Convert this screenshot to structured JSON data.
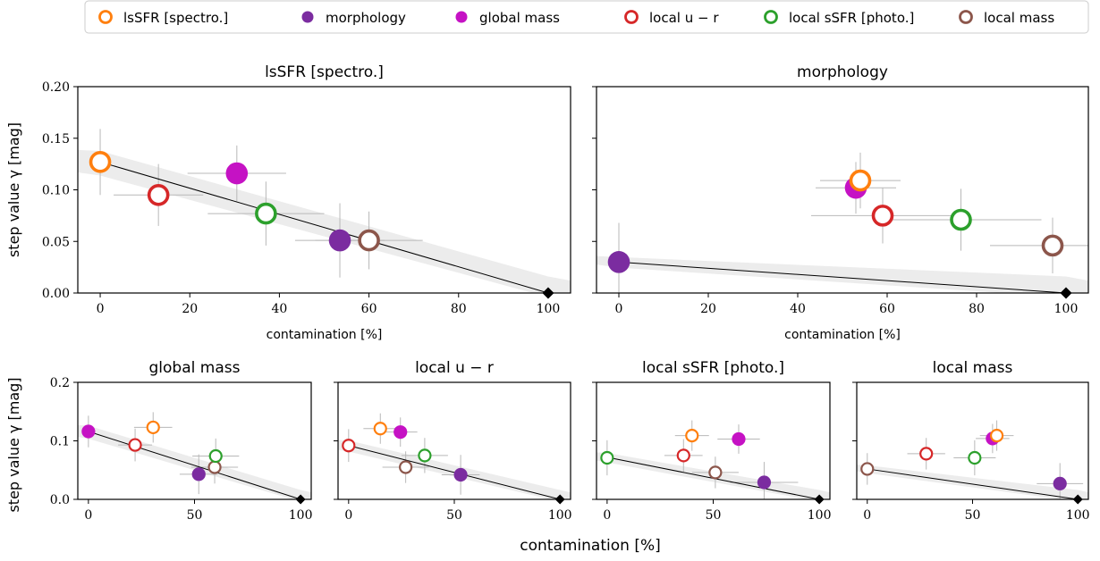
{
  "legend": {
    "placement": "top-center",
    "entries": [
      {
        "label": "lsSFR [spectro.]",
        "color": "#ff7f0e",
        "filled": false
      },
      {
        "label": "morphology",
        "color": "#7b2ca0",
        "filled": true
      },
      {
        "label": "global mass",
        "color": "#c512c4",
        "filled": true
      },
      {
        "label": "local u − r",
        "color": "#d62728",
        "filled": false
      },
      {
        "label": "local sSFR [photo.]",
        "color": "#2ca02c",
        "filled": false
      },
      {
        "label": "local mass",
        "color": "#8c564b",
        "filled": false
      }
    ]
  },
  "figure": {
    "xlabel": "contamination [%]",
    "ylabel": "step value γ [mag]"
  },
  "chart_data": [
    {
      "type": "scatter",
      "title": "lsSFR [spectro.]",
      "xlabel": "contamination [%]",
      "ylabel": "step value γ [mag]",
      "xlim": [
        -5,
        105
      ],
      "ylim": [
        0,
        0.2
      ],
      "xticks": [
        "0",
        "20",
        "40",
        "60",
        "80",
        "100"
      ],
      "yticks": [
        "0.00",
        "0.05",
        "0.10",
        "0.15",
        "0.20"
      ],
      "line": {
        "from": [
          0,
          0.127
        ],
        "to": [
          100,
          0
        ]
      },
      "points": [
        {
          "series": "lsSFR [spectro.]",
          "x": 0,
          "y": 0.127,
          "xerr": 0,
          "yerr": 0.032
        },
        {
          "series": "local u − r",
          "x": 13,
          "y": 0.095,
          "xerr": 10,
          "yerr": 0.03
        },
        {
          "series": "global mass",
          "x": 30.5,
          "y": 0.116,
          "xerr": 11,
          "yerr": 0.027
        },
        {
          "series": "local sSFR [photo.]",
          "x": 37,
          "y": 0.077,
          "xerr": 13,
          "yerr": 0.031
        },
        {
          "series": "morphology",
          "x": 53.5,
          "y": 0.051,
          "xerr": 10,
          "yerr": 0.036
        },
        {
          "series": "local mass",
          "x": 60,
          "y": 0.051,
          "xerr": 12,
          "yerr": 0.028
        }
      ]
    },
    {
      "type": "scatter",
      "title": "morphology",
      "xlabel": "contamination [%]",
      "xlim": [
        -5,
        105
      ],
      "ylim": [
        0,
        0.2
      ],
      "xticks": [
        "0",
        "20",
        "40",
        "60",
        "80",
        "100"
      ],
      "line": {
        "from": [
          0,
          0.03
        ],
        "to": [
          100,
          0
        ]
      },
      "points": [
        {
          "series": "morphology",
          "x": 0,
          "y": 0.03,
          "xerr": 0,
          "yerr": 0.038
        },
        {
          "series": "global mass",
          "x": 53,
          "y": 0.102,
          "xerr": 9,
          "yerr": 0.025
        },
        {
          "series": "lsSFR [spectro.]",
          "x": 54,
          "y": 0.109,
          "xerr": 9,
          "yerr": 0.027
        },
        {
          "series": "local u − r",
          "x": 59,
          "y": 0.075,
          "xerr": 16,
          "yerr": 0.027
        },
        {
          "series": "local sSFR [photo.]",
          "x": 76.5,
          "y": 0.071,
          "xerr": 18,
          "yerr": 0.03
        },
        {
          "series": "local mass",
          "x": 97,
          "y": 0.046,
          "xerr": 14,
          "yerr": 0.027
        }
      ]
    },
    {
      "type": "scatter",
      "title": "global mass",
      "ylabel": "step value γ [mag]",
      "xlim": [
        -5,
        105
      ],
      "ylim": [
        0,
        0.2
      ],
      "xticks": [
        "0",
        "50",
        "100"
      ],
      "yticks": [
        "0.0",
        "0.1",
        "0.2"
      ],
      "line": {
        "from": [
          0,
          0.116
        ],
        "to": [
          100,
          0
        ]
      },
      "points": [
        {
          "series": "global mass",
          "x": 0,
          "y": 0.116,
          "xerr": 0,
          "yerr": 0.027
        },
        {
          "series": "local u − r",
          "x": 22,
          "y": 0.093,
          "xerr": 8,
          "yerr": 0.028
        },
        {
          "series": "lsSFR [spectro.]",
          "x": 30.5,
          "y": 0.123,
          "xerr": 9,
          "yerr": 0.026
        },
        {
          "series": "morphology",
          "x": 52,
          "y": 0.043,
          "xerr": 9,
          "yerr": 0.034
        },
        {
          "series": "local mass",
          "x": 59.5,
          "y": 0.055,
          "xerr": 11,
          "yerr": 0.028
        },
        {
          "series": "local sSFR [photo.]",
          "x": 60,
          "y": 0.074,
          "xerr": 11,
          "yerr": 0.03
        }
      ]
    },
    {
      "type": "scatter",
      "title": "local u − r",
      "xlim": [
        -5,
        105
      ],
      "ylim": [
        0,
        0.2
      ],
      "xticks": [
        "0",
        "50",
        "100"
      ],
      "line": {
        "from": [
          0,
          0.092
        ],
        "to": [
          100,
          0
        ]
      },
      "points": [
        {
          "series": "local u − r",
          "x": 0,
          "y": 0.092,
          "xerr": 0,
          "yerr": 0.028
        },
        {
          "series": "lsSFR [spectro.]",
          "x": 15,
          "y": 0.121,
          "xerr": 8,
          "yerr": 0.026
        },
        {
          "series": "global mass",
          "x": 24.5,
          "y": 0.115,
          "xerr": 8,
          "yerr": 0.025
        },
        {
          "series": "local mass",
          "x": 27,
          "y": 0.055,
          "xerr": 11,
          "yerr": 0.027
        },
        {
          "series": "local sSFR [photo.]",
          "x": 36,
          "y": 0.075,
          "xerr": 11,
          "yerr": 0.03
        },
        {
          "series": "morphology",
          "x": 53,
          "y": 0.042,
          "xerr": 9,
          "yerr": 0.034
        }
      ]
    },
    {
      "type": "scatter",
      "title": "local sSFR [photo.]",
      "xlim": [
        -5,
        105
      ],
      "ylim": [
        0,
        0.2
      ],
      "xticks": [
        "0",
        "50",
        "100"
      ],
      "line": {
        "from": [
          0,
          0.072
        ],
        "to": [
          100,
          0
        ]
      },
      "points": [
        {
          "series": "local sSFR [photo.]",
          "x": 0,
          "y": 0.071,
          "xerr": 0,
          "yerr": 0.03
        },
        {
          "series": "local u − r",
          "x": 36,
          "y": 0.075,
          "xerr": 9,
          "yerr": 0.028
        },
        {
          "series": "lsSFR [spectro.]",
          "x": 40,
          "y": 0.109,
          "xerr": 8,
          "yerr": 0.026
        },
        {
          "series": "local mass",
          "x": 51,
          "y": 0.046,
          "xerr": 11,
          "yerr": 0.027
        },
        {
          "series": "global mass",
          "x": 62,
          "y": 0.103,
          "xerr": 10,
          "yerr": 0.025
        },
        {
          "series": "morphology",
          "x": 74,
          "y": 0.029,
          "xerr": 16,
          "yerr": 0.035
        }
      ]
    },
    {
      "type": "scatter",
      "title": "local mass",
      "xlim": [
        -5,
        105
      ],
      "ylim": [
        0,
        0.2
      ],
      "xticks": [
        "0",
        "50",
        "100"
      ],
      "line": {
        "from": [
          0,
          0.052
        ],
        "to": [
          100,
          0
        ]
      },
      "points": [
        {
          "series": "local mass",
          "x": 0,
          "y": 0.052,
          "xerr": 0,
          "yerr": 0.027
        },
        {
          "series": "local u − r",
          "x": 28,
          "y": 0.078,
          "xerr": 9,
          "yerr": 0.027
        },
        {
          "series": "local sSFR [photo.]",
          "x": 51,
          "y": 0.071,
          "xerr": 10,
          "yerr": 0.03
        },
        {
          "series": "global mass",
          "x": 59.5,
          "y": 0.104,
          "xerr": 8,
          "yerr": 0.025
        },
        {
          "series": "lsSFR [spectro.]",
          "x": 61.5,
          "y": 0.109,
          "xerr": 8,
          "yerr": 0.026
        },
        {
          "series": "morphology",
          "x": 91.5,
          "y": 0.027,
          "xerr": 11,
          "yerr": 0.035
        }
      ]
    }
  ]
}
